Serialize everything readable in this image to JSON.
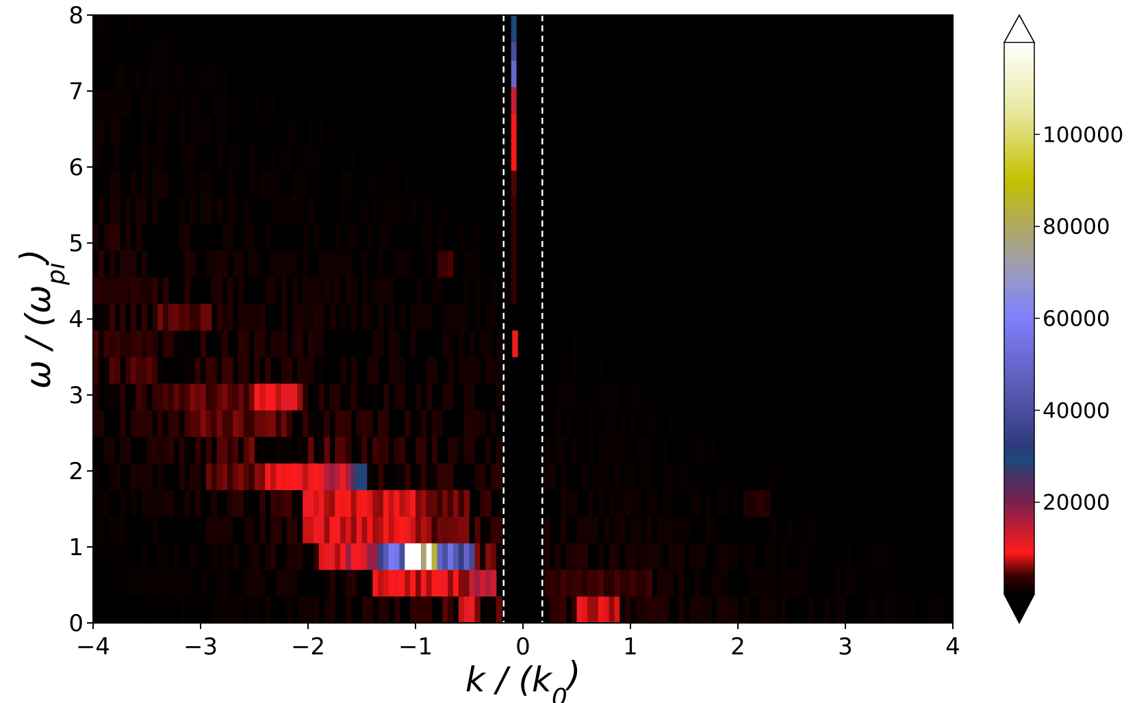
{
  "chart_data": {
    "type": "heatmap",
    "title": "",
    "xlabel": "k / (k_0)",
    "ylabel": "ω / (ω_pi)",
    "xlabel_parts": {
      "main": "k / (k",
      "sub": "0",
      "close": ")"
    },
    "ylabel_parts": {
      "main": "ω / (ω",
      "sub": "pi",
      "close": ")"
    },
    "xlim": [
      -4,
      4
    ],
    "ylim": [
      0,
      8
    ],
    "x_ticks": [
      -4,
      -3,
      -2,
      -1,
      0,
      1,
      2,
      3,
      4
    ],
    "x_tick_labels": [
      "−4",
      "−3",
      "−2",
      "−1",
      "0",
      "1",
      "2",
      "3",
      "4"
    ],
    "y_ticks": [
      0,
      1,
      2,
      3,
      4,
      5,
      6,
      7,
      8
    ],
    "y_tick_labels": [
      "0",
      "1",
      "2",
      "3",
      "4",
      "5",
      "6",
      "7",
      "8"
    ],
    "vlines": [
      -0.18,
      0.18
    ],
    "colorbar": {
      "range": [
        0,
        120000
      ],
      "ticks": [
        20000,
        40000,
        60000,
        80000,
        100000
      ],
      "tick_labels": [
        "20000",
        "40000",
        "60000",
        "80000",
        "100000"
      ],
      "extend": "both",
      "colormap": [
        {
          "v": 0,
          "color": "#000000"
        },
        {
          "v": 4000,
          "color": "#3a0000"
        },
        {
          "v": 9000,
          "color": "#ff1a1a"
        },
        {
          "v": 14000,
          "color": "#c81e32"
        },
        {
          "v": 20000,
          "color": "#7a2050"
        },
        {
          "v": 27000,
          "color": "#3a3a6e"
        },
        {
          "v": 29000,
          "color": "#1a4a78"
        },
        {
          "v": 32000,
          "color": "#2e3a7c"
        },
        {
          "v": 45000,
          "color": "#5a5ab4"
        },
        {
          "v": 60000,
          "color": "#8080ff"
        },
        {
          "v": 70000,
          "color": "#9a9ac0"
        },
        {
          "v": 80000,
          "color": "#b0a860"
        },
        {
          "v": 90000,
          "color": "#c4c000"
        },
        {
          "v": 105000,
          "color": "#e8e8a0"
        },
        {
          "v": 120000,
          "color": "#ffffff"
        }
      ]
    },
    "grid": {
      "k_bin_width": 0.05,
      "omega_bin_width": 0.35,
      "k_range": [
        -4,
        4
      ],
      "omega_range": [
        0,
        8
      ]
    },
    "features": [
      {
        "k": [
          -1.1,
          -0.8
        ],
        "omega": [
          0.85,
          1.2
        ],
        "value": 110000
      },
      {
        "k": [
          -1.35,
          -1.1
        ],
        "omega": [
          0.85,
          1.2
        ],
        "value": 50000
      },
      {
        "k": [
          -0.8,
          -0.45
        ],
        "omega": [
          0.85,
          1.2
        ],
        "value": 48000
      },
      {
        "k": [
          -1.65,
          -1.35
        ],
        "omega": [
          0.85,
          1.2
        ],
        "value": 14000
      },
      {
        "k": [
          -1.9,
          -1.65
        ],
        "omega": [
          0.85,
          1.2
        ],
        "value": 9000
      },
      {
        "k": [
          -1.85,
          -1.45
        ],
        "omega": [
          1.9,
          2.25
        ],
        "value": 14000
      },
      {
        "k": [
          -1.6,
          -1.45
        ],
        "omega": [
          1.9,
          2.25
        ],
        "value": 30000
      },
      {
        "k": [
          -2.4,
          -1.85
        ],
        "omega": [
          1.9,
          2.25
        ],
        "value": 9000
      },
      {
        "k": [
          -2.95,
          -2.4
        ],
        "omega": [
          1.9,
          2.25
        ],
        "value": 5000
      },
      {
        "k": [
          -2.05,
          -1.0
        ],
        "omega": [
          1.2,
          1.9
        ],
        "value": 8500
      },
      {
        "k": [
          -1.0,
          -0.5
        ],
        "omega": [
          1.2,
          1.9
        ],
        "value": 5500
      },
      {
        "k": [
          -1.4,
          -0.45
        ],
        "omega": [
          0.45,
          0.85
        ],
        "value": 8000
      },
      {
        "k": [
          -0.5,
          -0.25
        ],
        "omega": [
          0.45,
          0.85
        ],
        "value": 14000
      },
      {
        "k": [
          -0.6,
          -0.45
        ],
        "omega": [
          0.0,
          0.45
        ],
        "value": 9000
      },
      {
        "k": [
          -2.5,
          -2.05
        ],
        "omega": [
          2.95,
          3.3
        ],
        "value": 9000
      },
      {
        "k": [
          -3.4,
          -2.5
        ],
        "omega": [
          2.95,
          3.3
        ],
        "value": 4500
      },
      {
        "k": [
          -3.0,
          -2.2
        ],
        "omega": [
          2.55,
          2.95
        ],
        "value": 4500
      },
      {
        "k": [
          -3.4,
          -2.9
        ],
        "omega": [
          3.95,
          4.3
        ],
        "value": 4500
      },
      {
        "k": [
          -3.9,
          -3.4
        ],
        "omega": [
          3.55,
          3.95
        ],
        "value": 3200
      },
      {
        "k": [
          -3.9,
          -3.4
        ],
        "omega": [
          4.3,
          4.65
        ],
        "value": 2800
      },
      {
        "k": [
          -0.8,
          -0.65
        ],
        "omega": [
          4.65,
          5.0
        ],
        "value": 3500
      },
      {
        "k": [
          -3.9,
          -3.75
        ],
        "omega": [
          5.0,
          5.35
        ],
        "value": 3000
      },
      {
        "k": [
          -0.08,
          -0.04
        ],
        "omega": [
          3.55,
          3.95
        ],
        "value": 9000
      },
      {
        "k": [
          0.5,
          0.9
        ],
        "omega": [
          0.0,
          0.2
        ],
        "value": 8500
      },
      {
        "k": [
          0.25,
          1.2
        ],
        "omega": [
          0.45,
          0.85
        ],
        "value": 3500
      },
      {
        "k": [
          0.9,
          1.05
        ],
        "omega": [
          2.7,
          2.95
        ],
        "value": 6000
      },
      {
        "k": [
          2.05,
          2.3
        ],
        "omega": [
          1.55,
          1.9
        ],
        "value": 2500
      }
    ],
    "column": {
      "k": [
        -0.11,
        -0.06
      ],
      "segments": [
        {
          "omega": [
            7.65,
            8.0
          ],
          "value": 29000
        },
        {
          "omega": [
            7.4,
            7.65
          ],
          "value": 40000
        },
        {
          "omega": [
            7.05,
            7.4
          ],
          "value": 50000
        },
        {
          "omega": [
            6.7,
            7.05
          ],
          "value": 14000
        },
        {
          "omega": [
            5.95,
            6.7
          ],
          "value": 9000
        },
        {
          "omega": [
            5.6,
            5.95
          ],
          "value": 4500
        },
        {
          "omega": [
            4.2,
            5.6
          ],
          "value": 3500
        }
      ]
    }
  }
}
